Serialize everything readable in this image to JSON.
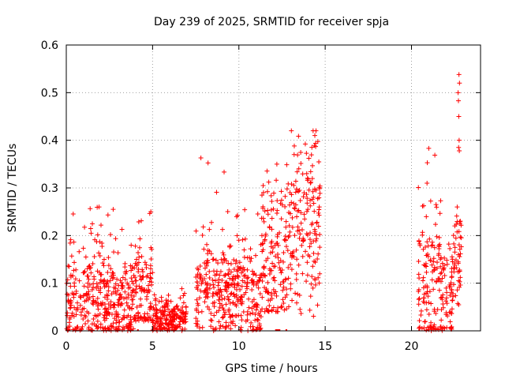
{
  "chart_data": {
    "type": "scatter",
    "title": "Day 239 of 2025, SRMTID for receiver spja",
    "xlabel": "GPS time / hours",
    "ylabel": "SRMTID / TECUs",
    "xlim": [
      0,
      24
    ],
    "ylim": [
      0,
      0.6
    ],
    "xticks": [
      "0",
      "5",
      "10",
      "15",
      "20"
    ],
    "xtick_values": [
      0,
      5,
      10,
      15,
      20
    ],
    "yticks": [
      "0",
      "0.1",
      "0.2",
      "0.3",
      "0.4",
      "0.5",
      "0.6"
    ],
    "ytick_values": [
      0,
      0.1,
      0.2,
      0.3,
      0.4,
      0.5,
      0.6
    ],
    "grid": true,
    "marker": "+",
    "color": "#ff0000",
    "series": [
      {
        "name": "SRMTID",
        "segments": [
          {
            "start": 0.0,
            "end": 3.9,
            "low": 0.0,
            "base": 0.06,
            "spread": 0.05,
            "peak": 0.26
          },
          {
            "start": 3.9,
            "end": 5.0,
            "low": 0.02,
            "base": 0.08,
            "spread": 0.06,
            "peak": 0.25
          },
          {
            "start": 5.0,
            "end": 7.0,
            "low": 0.0,
            "base": 0.025,
            "spread": 0.02,
            "peak": 0.09
          },
          {
            "start": 7.5,
            "end": 9.5,
            "low": 0.0,
            "base": 0.09,
            "spread": 0.05,
            "peak": 0.36
          },
          {
            "start": 9.5,
            "end": 11.3,
            "low": 0.0,
            "base": 0.07,
            "spread": 0.05,
            "peak": 0.26
          },
          {
            "start": 11.3,
            "end": 13.0,
            "low": 0.04,
            "base": 0.16,
            "spread": 0.08,
            "peak": 0.35
          },
          {
            "start": 13.0,
            "end": 14.7,
            "low": 0.02,
            "base": 0.22,
            "spread": 0.1,
            "peak": 0.42
          },
          {
            "start": 20.4,
            "end": 21.7,
            "low": 0.0,
            "base": 0.1,
            "spread": 0.07,
            "peak": 0.38
          },
          {
            "start": 21.7,
            "end": 22.4,
            "low": 0.0,
            "base": 0.07,
            "spread": 0.05,
            "peak": 0.22
          },
          {
            "start": 22.4,
            "end": 22.9,
            "low": 0.05,
            "base": 0.15,
            "spread": 0.06,
            "peak": 0.26
          }
        ],
        "notable_points": [
          [
            1.9,
            0.26
          ],
          [
            4.9,
            0.25
          ],
          [
            7.8,
            0.363
          ],
          [
            12.2,
            0.35
          ],
          [
            13.2,
            0.37
          ],
          [
            14.3,
            0.42
          ],
          [
            14.4,
            0.41
          ],
          [
            21.0,
            0.383
          ],
          [
            20.9,
            0.31
          ],
          [
            22.75,
            0.538
          ],
          [
            22.78,
            0.52
          ],
          [
            22.7,
            0.5
          ],
          [
            22.72,
            0.483
          ],
          [
            22.74,
            0.45
          ],
          [
            22.76,
            0.4
          ],
          [
            22.73,
            0.385
          ],
          [
            22.77,
            0.378
          ]
        ],
        "zero_clusters": [
          [
            4.1,
            4.2
          ],
          [
            10.9,
            11.0
          ],
          [
            12.1,
            12.4
          ],
          [
            12.7,
            12.8
          ],
          [
            20.4,
            20.5
          ]
        ]
      }
    ]
  }
}
